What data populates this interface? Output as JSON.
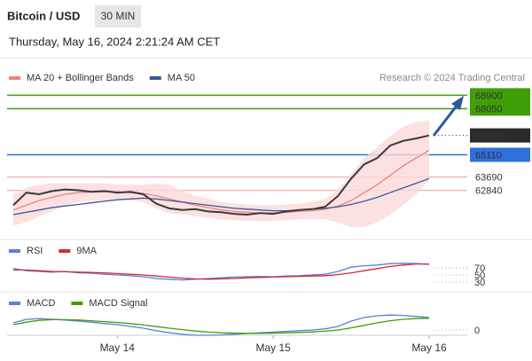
{
  "header": {
    "title": "Bitcoin / USD",
    "timeframe": "30 MIN",
    "datetime": "Thursday, May 16, 2024 2:21:24 AM CET"
  },
  "chart_data": [
    {
      "type": "line",
      "attribution": "Research © 2024 Trading Central",
      "values": [
        61900,
        62700,
        62600,
        62800,
        62900,
        62850,
        62750,
        62800,
        62700,
        62750,
        62600,
        62000,
        61700,
        61600,
        61650,
        61500,
        61450,
        61350,
        61300,
        61400,
        61350,
        61500,
        61600,
        61650,
        61800,
        62500,
        63600,
        64500,
        64900,
        65700,
        66000,
        66150,
        66343
      ],
      "color": "#3a3a3a",
      "ylim": [
        60000,
        69600
      ],
      "series": [
        {
          "name": "MA 20 + Bollinger Bands",
          "color": "#f08080",
          "band_color": "#fbd9d9",
          "values": [
            61600,
            61900,
            62200,
            62400,
            62600,
            62700,
            62750,
            62750,
            62750,
            62700,
            62650,
            62500,
            62300,
            62100,
            61900,
            61750,
            61600,
            61500,
            61450,
            61400,
            61400,
            61450,
            61500,
            61550,
            61650,
            61850,
            62200,
            62700,
            63200,
            63800,
            64400,
            64900,
            65400
          ],
          "upper": [
            62600,
            63000,
            63200,
            63300,
            63300,
            63300,
            63300,
            63300,
            63200,
            63200,
            63200,
            63300,
            63200,
            62800,
            62500,
            62300,
            62100,
            62000,
            61950,
            61900,
            61900,
            61950,
            62000,
            62100,
            62300,
            62900,
            63900,
            64900,
            65600,
            66300,
            66900,
            67200,
            67300
          ],
          "lower": [
            60600,
            60800,
            61200,
            61500,
            61900,
            62100,
            62200,
            62200,
            62300,
            62200,
            62100,
            61700,
            61400,
            61300,
            61200,
            61100,
            61000,
            60950,
            60900,
            60900,
            60900,
            60950,
            61000,
            61000,
            61000,
            60800,
            60500,
            60500,
            60800,
            61300,
            61900,
            62600,
            63500
          ]
        },
        {
          "name": "MA 50",
          "color": "#3b5998",
          "values": [
            61300,
            61450,
            61600,
            61750,
            61850,
            61950,
            62050,
            62150,
            62250,
            62300,
            62350,
            62300,
            62200,
            62100,
            62000,
            61900,
            61800,
            61700,
            61650,
            61600,
            61550,
            61550,
            61600,
            61650,
            61700,
            61800,
            61950,
            62150,
            62400,
            62700,
            63000,
            63300,
            63600
          ]
        }
      ],
      "levels": [
        {
          "value": 68900,
          "color": "#3f9e07",
          "label_style": "box",
          "line_style": "solid"
        },
        {
          "value": 68050,
          "color": "#3f9e07",
          "label_style": "box",
          "line_style": "solid"
        },
        {
          "value": 66343,
          "color": "#2b2b2b",
          "label_style": "box",
          "line_style": "dotted"
        },
        {
          "value": 65110,
          "color": "#2f6fde",
          "label_style": "box",
          "line_style": "solid"
        },
        {
          "value": 63690,
          "color": "#d23b3b",
          "label_style": "text",
          "line_style": "solid"
        },
        {
          "value": 62840,
          "color": "#d23b3b",
          "label_style": "text",
          "line_style": "solid"
        }
      ]
    },
    {
      "type": "line",
      "ylim": [
        15,
        90
      ],
      "yticks": [
        70,
        50,
        30
      ],
      "series": [
        {
          "name": "RSI",
          "color": "#5b7fd6",
          "values": [
            68,
            62,
            60,
            58,
            60,
            56,
            55,
            52,
            50,
            48,
            45,
            40,
            38,
            36,
            38,
            40,
            42,
            44,
            45,
            46,
            45,
            47,
            48,
            50,
            52,
            60,
            72,
            76,
            78,
            82,
            83,
            82,
            80
          ]
        },
        {
          "name": "9MA",
          "color": "#d62b2b",
          "values": [
            64,
            64,
            62,
            60,
            59,
            58,
            57,
            56,
            54,
            52,
            50,
            47,
            44,
            41,
            39,
            38,
            39,
            40,
            42,
            43,
            44,
            45,
            46,
            47,
            48,
            51,
            56,
            62,
            68,
            74,
            78,
            81,
            81
          ]
        }
      ]
    },
    {
      "type": "line",
      "ylim": [
        -250,
        600
      ],
      "yticks": [
        0
      ],
      "categories": [
        null,
        null,
        null,
        null,
        null,
        null,
        null,
        null,
        "May 14",
        null,
        null,
        null,
        null,
        null,
        null,
        null,
        null,
        null,
        null,
        null,
        "May 15",
        null,
        null,
        null,
        null,
        null,
        null,
        null,
        null,
        null,
        null,
        null,
        "May 16"
      ],
      "series": [
        {
          "name": "MACD",
          "color": "#5b7fd6",
          "values": [
            200,
            300,
            320,
            300,
            280,
            250,
            220,
            180,
            150,
            100,
            50,
            -20,
            -80,
            -120,
            -150,
            -150,
            -140,
            -120,
            -100,
            -80,
            -60,
            -40,
            -20,
            0,
            30,
            100,
            250,
            350,
            400,
            420,
            410,
            380,
            350
          ]
        },
        {
          "name": "MACD Signal",
          "color": "#3f9e07",
          "values": [
            150,
            220,
            270,
            290,
            290,
            280,
            260,
            235,
            210,
            180,
            140,
            95,
            50,
            10,
            -30,
            -60,
            -80,
            -90,
            -95,
            -95,
            -90,
            -80,
            -70,
            -55,
            -35,
            0,
            60,
            130,
            200,
            260,
            300,
            320,
            330
          ]
        }
      ]
    }
  ]
}
